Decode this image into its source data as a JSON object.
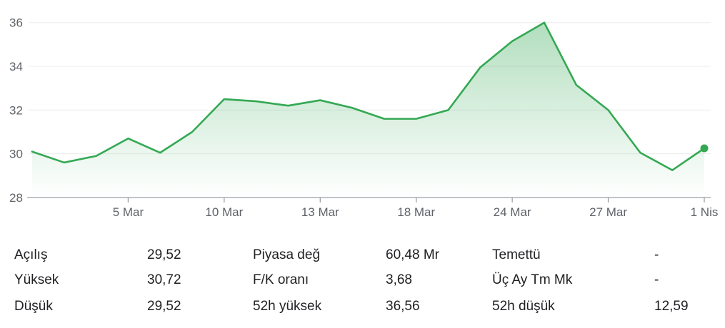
{
  "chart_data": {
    "type": "area",
    "x_labels": [
      "5 Mar",
      "10 Mar",
      "13 Mar",
      "18 Mar",
      "24 Mar",
      "27 Mar",
      "1 Nis"
    ],
    "x_label_point_index": [
      3,
      6,
      9,
      12,
      15,
      18,
      21
    ],
    "values": [
      30.1,
      29.6,
      29.9,
      30.7,
      30.05,
      31.0,
      32.5,
      32.4,
      32.2,
      32.45,
      32.1,
      31.6,
      31.6,
      32.0,
      33.95,
      35.15,
      36.0,
      33.15,
      32.0,
      30.05,
      29.25,
      30.25
    ],
    "y_ticks": [
      28,
      30,
      32,
      34,
      36
    ],
    "ylim": [
      28,
      36.6
    ],
    "grid": true,
    "line_color": "#34a853"
  },
  "stats": [
    [
      {
        "label": "Açılış",
        "value": "29,52"
      },
      {
        "label": "Piyasa değ",
        "value": "60,48 Mr"
      },
      {
        "label": "Temettü",
        "value": "-"
      }
    ],
    [
      {
        "label": "Yüksek",
        "value": "30,72"
      },
      {
        "label": "F/K oranı",
        "value": "3,68"
      },
      {
        "label": "Üç Ay Tm Mk",
        "value": "-"
      }
    ],
    [
      {
        "label": "Düşük",
        "value": "29,52"
      },
      {
        "label": "52h yüksek",
        "value": "36,56"
      },
      {
        "label": "52h düşük",
        "value": "12,59"
      }
    ]
  ]
}
